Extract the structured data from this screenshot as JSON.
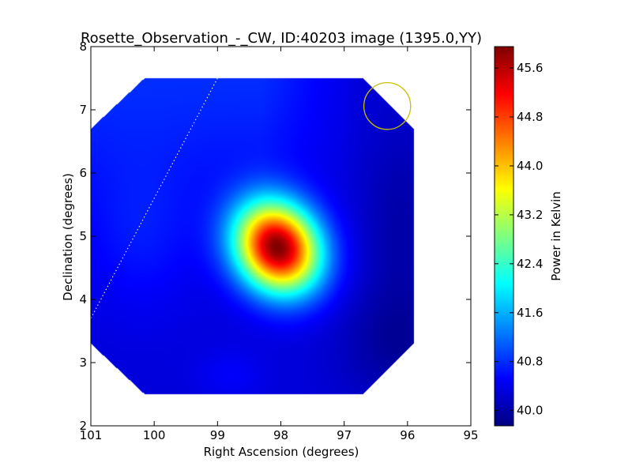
{
  "chart_data": {
    "type": "heatmap",
    "title": "Rosette_Observation_-_CW, ID:40203 image (1395.0,YY)",
    "xlabel": "Right Ascension (degrees)",
    "ylabel": "Declination (degrees)",
    "xlim": [
      101,
      95
    ],
    "ylim": [
      2,
      8
    ],
    "xticks": [
      101,
      100,
      99,
      98,
      97,
      96,
      95
    ],
    "xtick_labels": [
      "101",
      "100",
      "99",
      "98",
      "97",
      "96",
      "95"
    ],
    "yticks": [
      2,
      3,
      4,
      5,
      6,
      7,
      8
    ],
    "ytick_labels": [
      "2",
      "3",
      "4",
      "5",
      "6",
      "7",
      "8"
    ],
    "colorbar": {
      "label": "Power in Kelvin",
      "colormap": "jet",
      "min": 39.75,
      "max": 45.95,
      "ticks": [
        40.0,
        40.8,
        41.6,
        42.4,
        43.2,
        44.0,
        44.8,
        45.6
      ],
      "tick_labels": [
        "40.0",
        "40.8",
        "41.6",
        "42.4",
        "43.2",
        "44.0",
        "44.8",
        "45.6"
      ]
    },
    "map": {
      "background_K": 40.3,
      "source_peak": {
        "ra": 98.05,
        "dec": 4.82,
        "peak_K": 45.9
      },
      "footprint_outline_points": [
        {
          "ra": 100.15,
          "dec": 7.5
        },
        {
          "ra": 96.7,
          "dec": 7.5
        },
        {
          "ra": 95.9,
          "dec": 6.7
        },
        {
          "ra": 95.9,
          "dec": 3.3
        },
        {
          "ra": 96.7,
          "dec": 2.5
        },
        {
          "ra": 100.15,
          "dec": 2.5
        },
        {
          "ra": 101.0,
          "dec": 3.3
        },
        {
          "ra": 101.0,
          "dec": 6.7
        }
      ]
    },
    "overlays": {
      "dotted_line": {
        "color": "#e6e6e6",
        "points": [
          {
            "ra": 99.0,
            "dec": 7.5
          },
          {
            "ra": 101.0,
            "dec": 3.7
          }
        ]
      },
      "circle": {
        "color": "#c8c000",
        "center": {
          "ra": 96.32,
          "dec": 7.06
        },
        "radius_deg": 0.37
      }
    },
    "grid": false,
    "legend": "none"
  }
}
